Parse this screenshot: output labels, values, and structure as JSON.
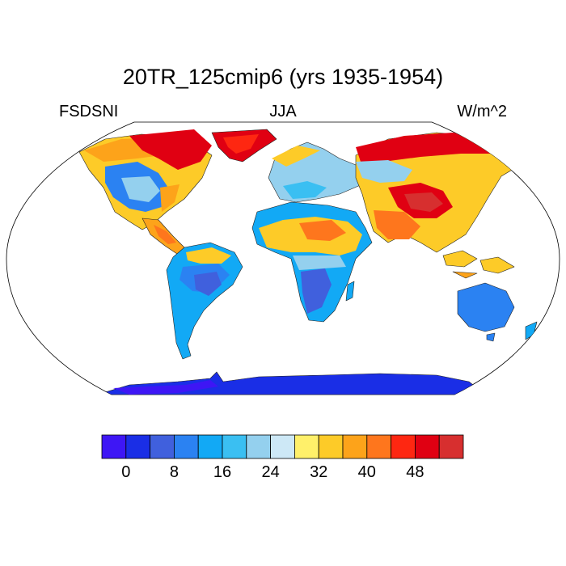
{
  "title": "20TR_125cmip6 (yrs 1935-1954)",
  "variable": "FSDSNI",
  "season": "JJA",
  "units": "W/m^2",
  "colorbar": {
    "colors": [
      "#3e16f5",
      "#1a2ee6",
      "#4060dd",
      "#2b82f2",
      "#12a9f5",
      "#3abff2",
      "#94d0ee",
      "#cde8f6",
      "#fff06a",
      "#fdcb28",
      "#fda31a",
      "#fe761d",
      "#fe2711",
      "#e00012",
      "#d72f2f"
    ],
    "tick_labels": [
      "0",
      "8",
      "16",
      "24",
      "32",
      "40",
      "48"
    ]
  },
  "map": {
    "ocean_color": "#ffffff",
    "outline_color": "#000000"
  }
}
